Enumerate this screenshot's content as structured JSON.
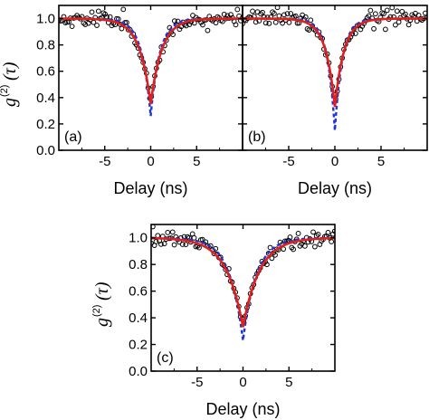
{
  "chart_data": [
    {
      "type": "scatter",
      "panel_label": "(a)",
      "xlabel": "Delay (ns)",
      "ylabel_main": "g",
      "ylabel_sup": "(2)",
      "ylabel_arg": "(τ)",
      "xlim": [
        -10,
        10
      ],
      "ylim": [
        0,
        1.1
      ],
      "xticks": [
        -5,
        0,
        5
      ],
      "yticks": [
        0.0,
        0.2,
        0.4,
        0.6,
        0.8,
        1.0
      ],
      "xtick_labels": [
        "-5",
        "0",
        "5"
      ],
      "ytick_labels": [
        "0.0",
        "0.2",
        "0.4",
        "0.6",
        "0.8",
        "1.0"
      ],
      "dip_min_fit": 0.35,
      "dip_min_deconvolved": 0.26,
      "dip_width_ns": 1.2,
      "series": [
        {
          "kind": "measured",
          "color": "#000000"
        },
        {
          "kind": "fit",
          "color": "#e0201c"
        },
        {
          "kind": "deconvolved",
          "color": "#1f35d6"
        }
      ]
    },
    {
      "type": "scatter",
      "panel_label": "(b)",
      "xlabel": "Delay (ns)",
      "xlim": [
        -10,
        10
      ],
      "ylim": [
        0,
        1.1
      ],
      "xticks": [
        -5,
        0,
        5
      ],
      "yticks": [
        0.0,
        0.2,
        0.4,
        0.6,
        0.8,
        1.0
      ],
      "xtick_labels": [
        "-5",
        "0",
        "5"
      ],
      "dip_min_fit": 0.33,
      "dip_min_deconvolved": 0.15,
      "dip_width_ns": 1.0,
      "series": [
        {
          "kind": "measured",
          "color": "#000000"
        },
        {
          "kind": "fit",
          "color": "#e0201c"
        },
        {
          "kind": "deconvolved",
          "color": "#1f35d6"
        }
      ]
    },
    {
      "type": "scatter",
      "panel_label": "(c)",
      "xlabel": "Delay (ns)",
      "ylabel_main": "g",
      "ylabel_sup": "(2)",
      "ylabel_arg": "(τ)",
      "xlim": [
        -10,
        10
      ],
      "ylim": [
        0,
        1.1
      ],
      "xticks": [
        -5,
        0,
        5
      ],
      "yticks": [
        0.0,
        0.2,
        0.4,
        0.6,
        0.8,
        1.0
      ],
      "xtick_labels": [
        "-5",
        "0",
        "5"
      ],
      "ytick_labels": [
        "0.0",
        "0.2",
        "0.4",
        "0.6",
        "0.8",
        "1.0"
      ],
      "dip_min_fit": 0.33,
      "dip_min_deconvolved": 0.23,
      "dip_width_ns": 1.8,
      "series": [
        {
          "kind": "measured",
          "color": "#000000"
        },
        {
          "kind": "fit",
          "color": "#e0201c"
        },
        {
          "kind": "deconvolved",
          "color": "#1f35d6"
        }
      ]
    }
  ]
}
